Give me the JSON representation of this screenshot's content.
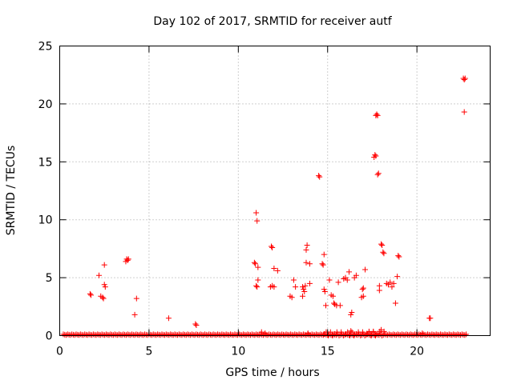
{
  "chart_data": {
    "type": "scatter",
    "title": "Day 102 of 2017, SRMTID for receiver autf",
    "xlabel": "GPS time / hours",
    "ylabel": "SRMTID / TECUs",
    "xlim": [
      0,
      24.1
    ],
    "ylim": [
      0,
      25
    ],
    "xticks": [
      0,
      5,
      10,
      15,
      20
    ],
    "yticks": [
      0,
      5,
      10,
      15,
      20,
      25
    ],
    "grid": true,
    "marker": "+",
    "color": "#ff0000",
    "series": [
      {
        "name": "SRMTID",
        "points": [
          [
            1.7,
            3.6
          ],
          [
            1.75,
            3.5
          ],
          [
            2.2,
            5.2
          ],
          [
            2.3,
            3.4
          ],
          [
            2.4,
            3.3
          ],
          [
            2.45,
            3.2
          ],
          [
            2.5,
            4.4
          ],
          [
            2.55,
            4.2
          ],
          [
            2.5,
            6.1
          ],
          [
            3.7,
            6.4
          ],
          [
            3.75,
            6.6
          ],
          [
            3.8,
            6.5
          ],
          [
            3.85,
            6.6
          ],
          [
            4.2,
            1.8
          ],
          [
            4.3,
            3.2
          ],
          [
            6.1,
            1.5
          ],
          [
            7.6,
            1.0
          ],
          [
            7.65,
            0.9
          ],
          [
            10.9,
            6.3
          ],
          [
            10.95,
            6.2
          ],
          [
            11.0,
            4.3
          ],
          [
            11.05,
            4.2
          ],
          [
            11.0,
            10.6
          ],
          [
            11.05,
            9.9
          ],
          [
            11.1,
            4.8
          ],
          [
            11.1,
            5.9
          ],
          [
            11.8,
            4.2
          ],
          [
            11.9,
            4.3
          ],
          [
            12.0,
            4.2
          ],
          [
            11.85,
            7.7
          ],
          [
            11.9,
            7.6
          ],
          [
            12.0,
            5.8
          ],
          [
            12.2,
            5.6
          ],
          [
            12.9,
            3.4
          ],
          [
            13.0,
            3.3
          ],
          [
            13.1,
            4.8
          ],
          [
            13.2,
            4.2
          ],
          [
            13.6,
            3.4
          ],
          [
            13.6,
            4.2
          ],
          [
            13.65,
            4.0
          ],
          [
            13.7,
            3.8
          ],
          [
            13.75,
            4.3
          ],
          [
            13.8,
            7.4
          ],
          [
            13.85,
            7.8
          ],
          [
            13.8,
            6.3
          ],
          [
            14.0,
            6.2
          ],
          [
            14.0,
            4.5
          ],
          [
            14.5,
            13.8
          ],
          [
            14.55,
            13.7
          ],
          [
            14.7,
            6.2
          ],
          [
            14.75,
            6.1
          ],
          [
            14.8,
            7.0
          ],
          [
            14.8,
            4.0
          ],
          [
            14.85,
            3.8
          ],
          [
            14.9,
            2.6
          ],
          [
            15.1,
            4.8
          ],
          [
            15.2,
            3.5
          ],
          [
            15.3,
            3.4
          ],
          [
            15.35,
            2.8
          ],
          [
            15.4,
            2.7
          ],
          [
            15.5,
            2.6
          ],
          [
            15.6,
            4.6
          ],
          [
            15.7,
            2.6
          ],
          [
            15.9,
            4.9
          ],
          [
            16.0,
            5.0
          ],
          [
            16.1,
            4.8
          ],
          [
            16.2,
            5.5
          ],
          [
            16.3,
            1.8
          ],
          [
            16.35,
            2.0
          ],
          [
            16.5,
            5.0
          ],
          [
            16.6,
            5.2
          ],
          [
            16.9,
            3.3
          ],
          [
            17.0,
            3.4
          ],
          [
            16.95,
            4.0
          ],
          [
            17.0,
            4.1
          ],
          [
            17.1,
            5.7
          ],
          [
            17.6,
            15.4
          ],
          [
            17.65,
            15.6
          ],
          [
            17.7,
            15.5
          ],
          [
            17.7,
            19.0
          ],
          [
            17.75,
            19.1
          ],
          [
            17.8,
            19.0
          ],
          [
            17.8,
            13.9
          ],
          [
            17.85,
            14.0
          ],
          [
            17.9,
            3.9
          ],
          [
            17.9,
            4.3
          ],
          [
            18.0,
            7.9
          ],
          [
            18.05,
            7.8
          ],
          [
            18.1,
            7.2
          ],
          [
            18.15,
            7.1
          ],
          [
            18.3,
            4.5
          ],
          [
            18.4,
            4.4
          ],
          [
            18.5,
            4.6
          ],
          [
            18.6,
            4.2
          ],
          [
            18.7,
            4.5
          ],
          [
            18.8,
            2.8
          ],
          [
            18.9,
            5.1
          ],
          [
            18.95,
            6.9
          ],
          [
            19.0,
            6.8
          ],
          [
            20.7,
            1.5
          ],
          [
            20.75,
            1.5
          ],
          [
            22.6,
            22.2
          ],
          [
            22.65,
            22.1
          ],
          [
            22.7,
            22.2
          ],
          [
            22.65,
            19.3
          ]
        ],
        "baseline": {
          "value": 0.05,
          "segments": [
            [
              0.2,
              22.8
            ]
          ],
          "elevated": [
            [
              14.8,
              17.6,
              0.3
            ],
            [
              17.2,
              18.2,
              0.35
            ]
          ],
          "extra": [
            [
              11.3,
              0.3
            ],
            [
              11.5,
              0.2
            ],
            [
              13.9,
              0.2
            ],
            [
              16.3,
              0.4
            ],
            [
              18.0,
              0.5
            ],
            [
              20.3,
              0.2
            ]
          ]
        }
      }
    ]
  }
}
